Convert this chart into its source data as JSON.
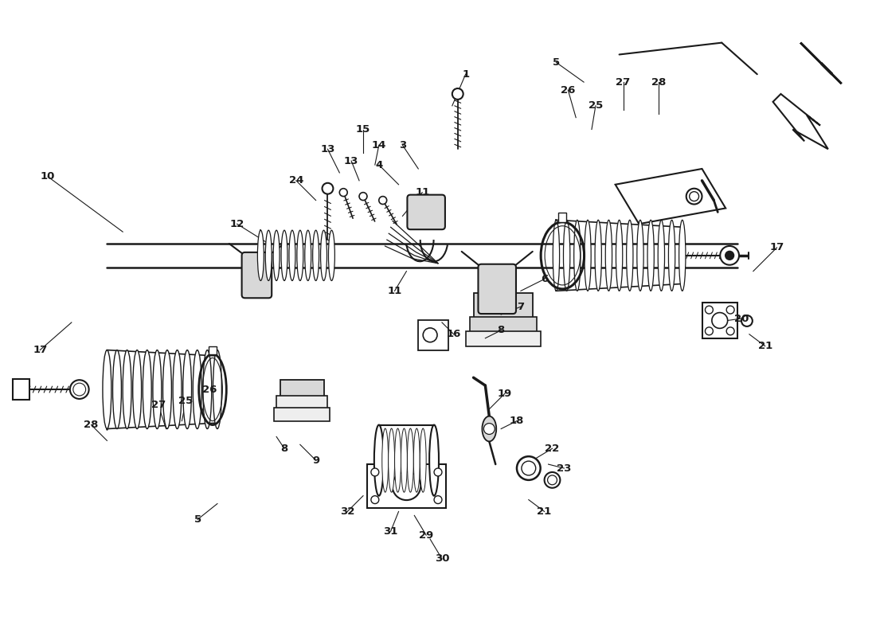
{
  "bg": "#ffffff",
  "lc": "#1a1a1a",
  "gray_fill": "#d8d8d8",
  "light_fill": "#eeeeee",
  "fig_w": 11.0,
  "fig_h": 8.0,
  "dpi": 100,
  "xlim": [
    0,
    11
  ],
  "ylim": [
    0,
    8
  ],
  "part_labels": [
    [
      1,
      5.85,
      7.1,
      5.68,
      6.7
    ],
    [
      3,
      5.05,
      6.2,
      5.25,
      5.9
    ],
    [
      4,
      4.75,
      5.95,
      5.0,
      5.7
    ],
    [
      5,
      7.0,
      7.25,
      7.35,
      7.0
    ],
    [
      5,
      2.45,
      1.45,
      2.7,
      1.65
    ],
    [
      6,
      6.85,
      4.5,
      6.55,
      4.35
    ],
    [
      7,
      6.55,
      4.15,
      6.3,
      4.05
    ],
    [
      8,
      6.3,
      3.85,
      6.1,
      3.75
    ],
    [
      8,
      3.55,
      2.35,
      3.45,
      2.5
    ],
    [
      9,
      3.95,
      2.2,
      3.75,
      2.4
    ],
    [
      10,
      0.55,
      5.8,
      1.5,
      5.1
    ],
    [
      11,
      5.3,
      5.6,
      5.05,
      5.3
    ],
    [
      11,
      4.95,
      4.35,
      5.1,
      4.6
    ],
    [
      12,
      2.95,
      5.2,
      3.35,
      4.95
    ],
    [
      13,
      4.1,
      6.15,
      4.25,
      5.85
    ],
    [
      13,
      4.4,
      6.0,
      4.5,
      5.75
    ],
    [
      14,
      4.75,
      6.2,
      4.7,
      5.95
    ],
    [
      15,
      4.55,
      6.4,
      4.55,
      6.1
    ],
    [
      16,
      5.7,
      3.8,
      5.55,
      3.95
    ],
    [
      17,
      0.45,
      3.6,
      0.85,
      3.95
    ],
    [
      17,
      9.8,
      4.9,
      9.5,
      4.6
    ],
    [
      18,
      6.5,
      2.7,
      6.3,
      2.6
    ],
    [
      19,
      6.35,
      3.05,
      6.15,
      2.85
    ],
    [
      20,
      9.35,
      4.0,
      9.0,
      3.95
    ],
    [
      21,
      9.65,
      3.65,
      9.45,
      3.8
    ],
    [
      21,
      6.85,
      1.55,
      6.65,
      1.7
    ],
    [
      22,
      6.95,
      2.35,
      6.7,
      2.2
    ],
    [
      23,
      7.1,
      2.1,
      6.9,
      2.15
    ],
    [
      24,
      3.7,
      5.75,
      3.95,
      5.5
    ],
    [
      25,
      7.5,
      6.7,
      7.45,
      6.4
    ],
    [
      25,
      2.3,
      2.95,
      2.25,
      2.7
    ],
    [
      26,
      7.15,
      6.9,
      7.25,
      6.55
    ],
    [
      26,
      2.6,
      3.1,
      2.5,
      2.8
    ],
    [
      27,
      7.85,
      7.0,
      7.85,
      6.65
    ],
    [
      27,
      1.95,
      2.9,
      2.05,
      2.6
    ],
    [
      28,
      8.3,
      7.0,
      8.3,
      6.6
    ],
    [
      28,
      1.1,
      2.65,
      1.3,
      2.45
    ],
    [
      29,
      5.35,
      1.25,
      5.2,
      1.5
    ],
    [
      30,
      5.55,
      0.95,
      5.4,
      1.2
    ],
    [
      31,
      4.9,
      1.3,
      5.0,
      1.55
    ],
    [
      32,
      4.35,
      1.55,
      4.55,
      1.75
    ]
  ]
}
